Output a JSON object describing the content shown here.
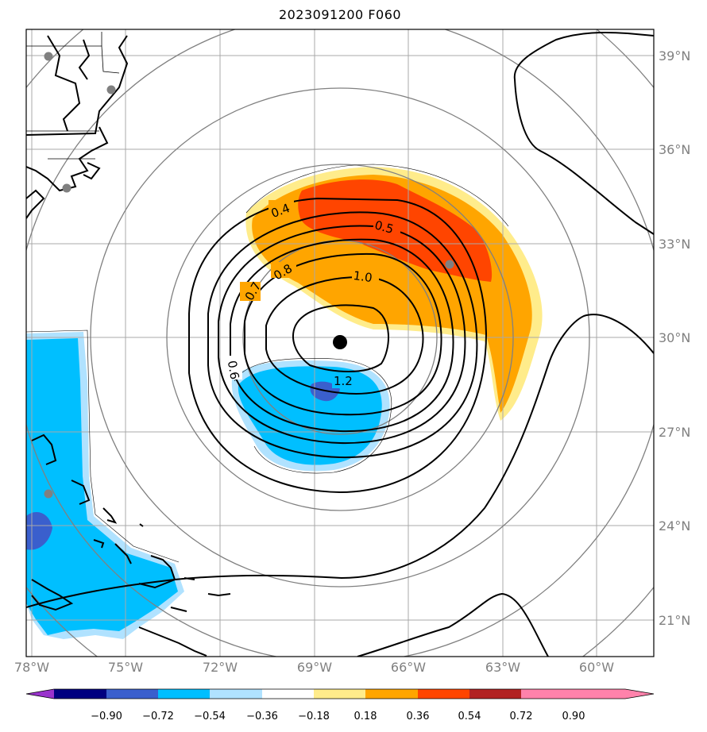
{
  "title": "2023091200 F060",
  "map": {
    "lon_ticks": [
      "78°W",
      "75°W",
      "72°W",
      "69°W",
      "66°W",
      "63°W",
      "60°W"
    ],
    "lat_ticks": [
      "39°N",
      "36°N",
      "33°N",
      "30°N",
      "27°N",
      "24°N",
      "21°N"
    ],
    "extent": {
      "lon": [
        -78,
        -58
      ],
      "lat": [
        20,
        40
      ]
    },
    "storm_center": {
      "lon": -68,
      "lat": 29.8
    },
    "gridlines": true,
    "range_rings": "gray concentric circles around storm center"
  },
  "contour_labels": [
    "0.4",
    "0.5",
    "0.7",
    "0.8",
    "1.0",
    "0.6",
    "1.2"
  ],
  "colorbar": {
    "labels": [
      "−0.90",
      "−0.72",
      "−0.54",
      "−0.36",
      "−0.18",
      "0.18",
      "0.36",
      "0.54",
      "0.72",
      "0.90"
    ],
    "colors": [
      "#9933cc",
      "#000080",
      "#3a5fcd",
      "#00bfff",
      "#b0e2ff",
      "#ffffff",
      "#ffec8b",
      "#ffa500",
      "#ff4500",
      "#b22222",
      "#ff82ab"
    ]
  },
  "stations": [
    {
      "lon": -77.3,
      "lat": 38.9
    },
    {
      "lon": -75.6,
      "lat": 37.9
    },
    {
      "lon": -76.7,
      "lat": 34.8
    },
    {
      "lon": -64.7,
      "lat": 32.3
    },
    {
      "lon": -77.3,
      "lat": 25.1
    }
  ]
}
